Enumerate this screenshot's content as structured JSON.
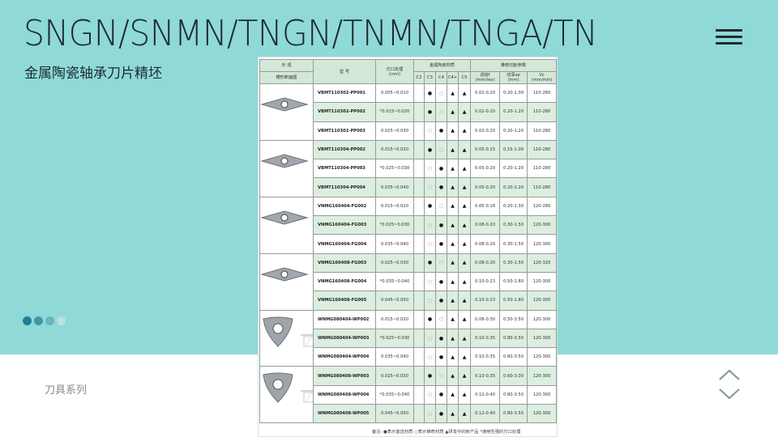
{
  "header": {
    "title": "SNGN/SNMN/TNGN/TNMN/TNGA/TN",
    "subtitle": "金属陶瓷轴承刀片精坯",
    "menu_icon": "hamburger-icon"
  },
  "pager": {
    "dots": [
      "#1f7f95",
      "#3f97a8",
      "#6cb3bd",
      "#b9e2e4"
    ],
    "active": 0
  },
  "footer": {
    "category": "刀具系列",
    "nav_icons": [
      "chevron-up-icon",
      "chevron-down-icon"
    ]
  },
  "colors": {
    "background": "#8fd9d9",
    "row_green": "#dbeedf",
    "header_green": "#d4e8d8"
  },
  "table": {
    "h_appearance": "外 观",
    "h_profile": "槽形断面图",
    "h_model": "型 号",
    "h_edge": "刃口处理\n(mm)",
    "h_material": "金属陶瓷材质",
    "grades": [
      "C2",
      "C3",
      "C4",
      "C4+",
      "C5"
    ],
    "h_params": "推荐切削参数",
    "h_f": "进给f\n(mm/rev)",
    "h_ap": "切深ap\n(mm)",
    "h_vc": "Vc\n(mm/min)",
    "rows": [
      {
        "model": "VBMT110302-PP001",
        "edge": "0.005~0.010",
        "mat": [
          "",
          "●",
          "○",
          "▲",
          "▲"
        ],
        "f": "0.02-0.20",
        "ap": "0.20-1.00",
        "vc": "110-280"
      },
      {
        "model": "VBMT110302-PP002",
        "edge": "*0.015~0.020",
        "mat": [
          "",
          "●",
          "○",
          "▲",
          "▲"
        ],
        "f": "0.02-0.20",
        "ap": "0.20-1.20",
        "vc": "110-280"
      },
      {
        "model": "VBMT110302-PP003",
        "edge": "0.025~0.030",
        "mat": [
          "",
          "○",
          "●",
          "▲",
          "▲"
        ],
        "f": "0.02-0.20",
        "ap": "0.20-1.20",
        "vc": "110-280"
      },
      {
        "model": "VBMT110304-PP002",
        "edge": "0.015~0.020",
        "mat": [
          "",
          "●",
          "○",
          "▲",
          "▲"
        ],
        "f": "0.05-0.15",
        "ap": "0.15-1.00",
        "vc": "110-280"
      },
      {
        "model": "VBMT110304-PP003",
        "edge": "*0.025~0.030",
        "mat": [
          "",
          "○",
          "●",
          "▲",
          "▲"
        ],
        "f": "0.05-0.20",
        "ap": "0.20-1.20",
        "vc": "110-280"
      },
      {
        "model": "VBMT110304-PP004",
        "edge": "0.035~0.040",
        "mat": [
          "",
          "○",
          "●",
          "▲",
          "▲"
        ],
        "f": "0.05-0.20",
        "ap": "0.20-1.20",
        "vc": "110-280"
      },
      {
        "model": "VNMG160404-FG002",
        "edge": "0.015~0.020",
        "mat": [
          "",
          "●",
          "○",
          "▲",
          "▲"
        ],
        "f": "0.05-0.18",
        "ap": "0.20-1.30",
        "vc": "120-280"
      },
      {
        "model": "VNMG160404-FG003",
        "edge": "*0.025~0.030",
        "mat": [
          "",
          "○",
          "●",
          "▲",
          "▲"
        ],
        "f": "0.08-0.20",
        "ap": "0.30-1.50",
        "vc": "120-300"
      },
      {
        "model": "VNMG160404-FG004",
        "edge": "0.035~0.040",
        "mat": [
          "",
          "○",
          "●",
          "▲",
          "▲"
        ],
        "f": "0.08-0.20",
        "ap": "0.30-1.50",
        "vc": "120-300"
      },
      {
        "model": "VNMG160408-FG003",
        "edge": "0.025~0.030",
        "mat": [
          "",
          "●",
          "○",
          "▲",
          "▲"
        ],
        "f": "0.08-0.20",
        "ap": "0.30-1.50",
        "vc": "120-320"
      },
      {
        "model": "VNMG160408-FG004",
        "edge": "*0.035~0.040",
        "mat": [
          "",
          "○",
          "●",
          "▲",
          "▲"
        ],
        "f": "0.10-0.23",
        "ap": "0.50-1.80",
        "vc": "120-300"
      },
      {
        "model": "VNMG160408-FG005",
        "edge": "0.045~0.050",
        "mat": [
          "",
          "○",
          "●",
          "▲",
          "▲"
        ],
        "f": "0.10-0.23",
        "ap": "0.50-1.80",
        "vc": "120-300"
      },
      {
        "model": "WNMG080404-WP002",
        "edge": "0.015~0.020",
        "mat": [
          "",
          "●",
          "○",
          "▲",
          "▲"
        ],
        "f": "0.08-0.30",
        "ap": "0.50-3.50",
        "vc": "120-300"
      },
      {
        "model": "WNMG080404-WP003",
        "edge": "*0.025~0.030",
        "mat": [
          "",
          "○",
          "●",
          "▲",
          "▲"
        ],
        "f": "0.10-0.35",
        "ap": "0.80-3.50",
        "vc": "120-300"
      },
      {
        "model": "WNMG080404-WP004",
        "edge": "0.035~0.040",
        "mat": [
          "",
          "○",
          "●",
          "▲",
          "▲"
        ],
        "f": "0.10-0.35",
        "ap": "0.80-3.50",
        "vc": "120-300"
      },
      {
        "model": "WNMG080408-WP003",
        "edge": "0.025~0.030",
        "mat": [
          "",
          "●",
          "○",
          "▲",
          "▲"
        ],
        "f": "0.10-0.35",
        "ap": "0.60-3.00",
        "vc": "120-300"
      },
      {
        "model": "WNMG080408-WP004",
        "edge": "*0.035~0.040",
        "mat": [
          "",
          "○",
          "●",
          "▲",
          "▲"
        ],
        "f": "0.12-0.40",
        "ap": "0.80-3.50",
        "vc": "120-300"
      },
      {
        "model": "WNMG080408-WP005",
        "edge": "0.045~0.050",
        "mat": [
          "",
          "○",
          "●",
          "▲",
          "▲"
        ],
        "f": "0.12-0.40",
        "ap": "0.80-3.50",
        "vc": "120-300"
      }
    ],
    "groups": [
      "rhombus-35",
      "rhombus-35",
      "rhombus-35",
      "rhombus-35",
      "trigon",
      "trigon"
    ],
    "note": "备注: ●表示首选材质   ○表示推荐材质   ▲研发中的新产品   *通用性强的刃口处理"
  }
}
